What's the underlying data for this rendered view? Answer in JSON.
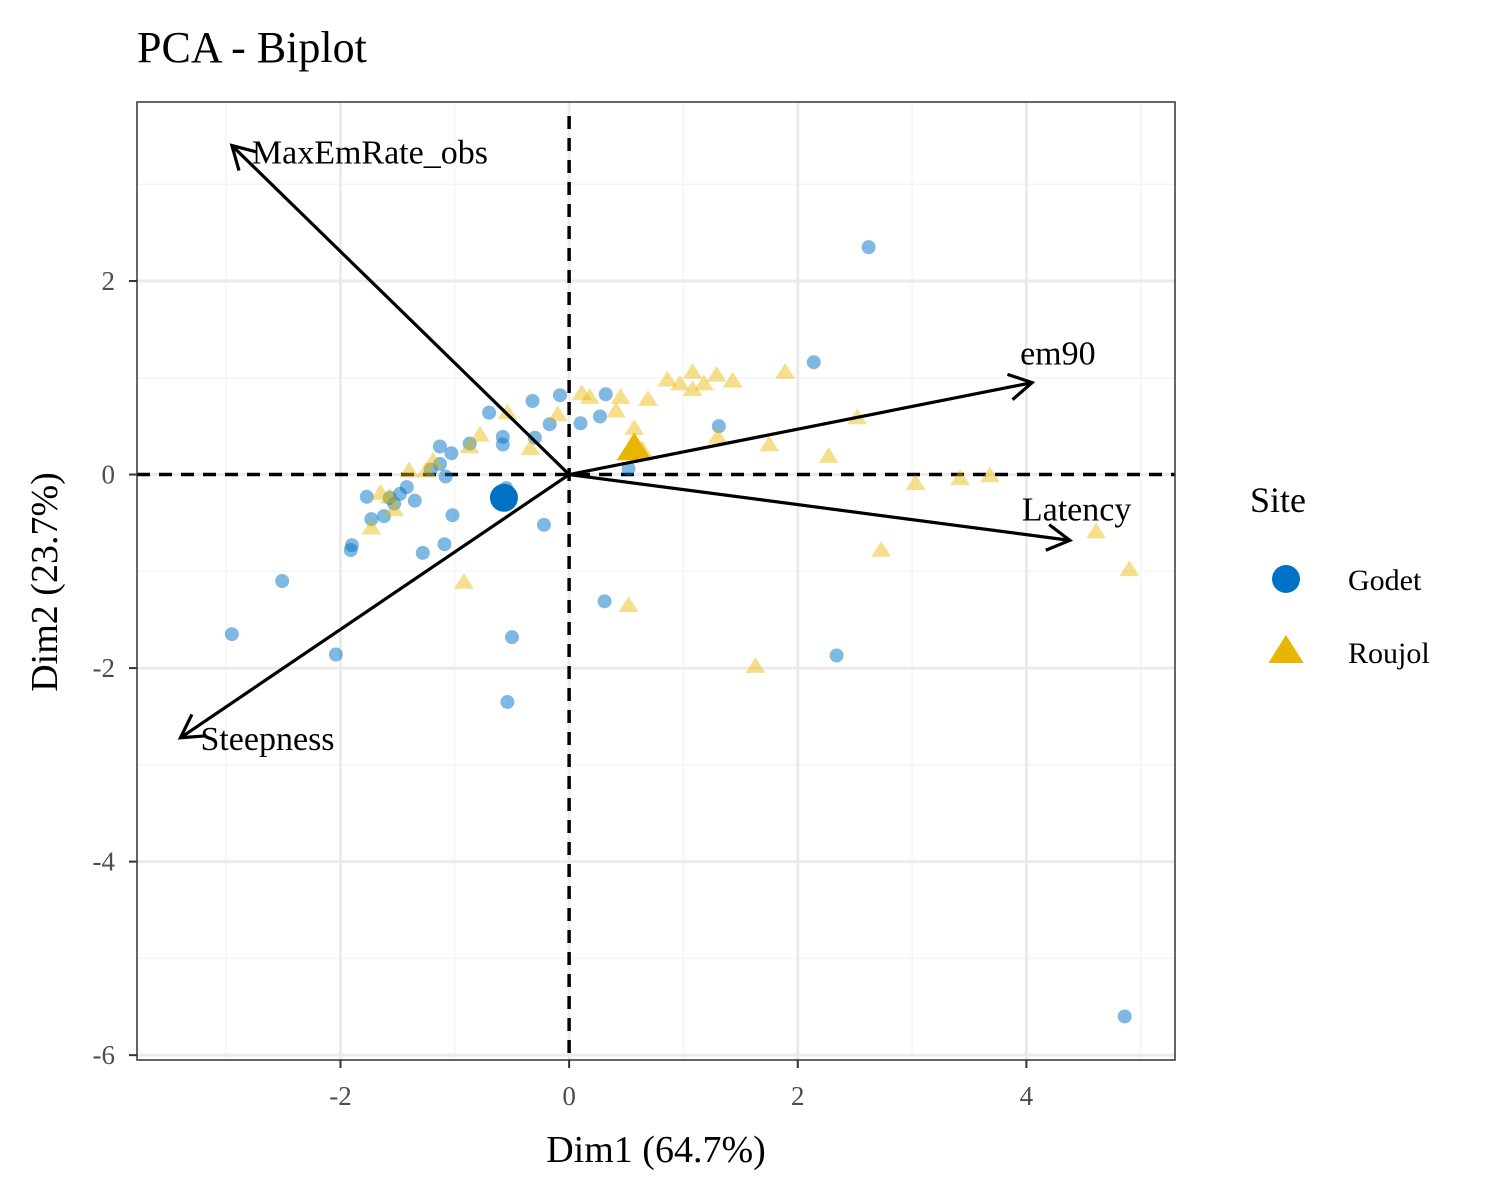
{
  "chart_data": {
    "type": "scatter",
    "title": "PCA - Biplot",
    "xlabel": "Dim1 (64.7%)",
    "ylabel": "Dim2 (23.7%)",
    "xlim": [
      -3.78,
      5.3
    ],
    "ylim": [
      -6.05,
      3.85
    ],
    "xticks": [
      -2,
      0,
      2,
      4
    ],
    "yticks": [
      -6,
      -4,
      -2,
      0,
      2
    ],
    "grid": true,
    "legend": {
      "title": "Site",
      "position": "right",
      "entries": [
        {
          "label": "Godet",
          "color": "#0072C6",
          "shape": "circle"
        },
        {
          "label": "Roujol",
          "color": "#E8B500",
          "shape": "triangle"
        }
      ]
    },
    "series": [
      {
        "name": "Godet",
        "color": "#0072C6",
        "shape": "circle",
        "centroid": [
          -0.57,
          -0.24
        ],
        "points": [
          [
            2.62,
            2.35
          ],
          [
            2.14,
            1.16
          ],
          [
            1.31,
            0.5
          ],
          [
            0.52,
            0.06
          ],
          [
            0.32,
            0.83
          ],
          [
            0.27,
            0.6
          ],
          [
            0.1,
            0.53
          ],
          [
            -0.08,
            0.82
          ],
          [
            -0.17,
            0.52
          ],
          [
            -0.32,
            0.76
          ],
          [
            -0.3,
            0.38
          ],
          [
            -0.58,
            0.39
          ],
          [
            -0.58,
            0.31
          ],
          [
            -0.7,
            0.64
          ],
          [
            -0.87,
            0.32
          ],
          [
            -1.03,
            0.22
          ],
          [
            -1.13,
            0.29
          ],
          [
            -1.13,
            0.11
          ],
          [
            -1.08,
            -0.02
          ],
          [
            -1.21,
            0.05
          ],
          [
            -1.35,
            -0.27
          ],
          [
            -1.42,
            -0.13
          ],
          [
            -1.48,
            -0.2
          ],
          [
            -1.53,
            -0.3
          ],
          [
            -1.57,
            -0.24
          ],
          [
            -1.62,
            -0.43
          ],
          [
            -1.73,
            -0.46
          ],
          [
            -1.77,
            -0.23
          ],
          [
            -1.9,
            -0.73
          ],
          [
            -1.91,
            -0.78
          ],
          [
            -1.02,
            -0.42
          ],
          [
            -1.09,
            -0.72
          ],
          [
            -1.28,
            -0.81
          ],
          [
            -0.22,
            -0.52
          ],
          [
            -0.55,
            -0.14
          ],
          [
            0.31,
            -1.31
          ],
          [
            -0.5,
            -1.68
          ],
          [
            -0.54,
            -2.35
          ],
          [
            -2.04,
            -1.86
          ],
          [
            -2.51,
            -1.1
          ],
          [
            -2.95,
            -1.65
          ],
          [
            2.34,
            -1.87
          ],
          [
            4.86,
            -5.6
          ]
        ]
      },
      {
        "name": "Roujol",
        "color": "#E8B500",
        "shape": "triangle",
        "centroid": [
          0.57,
          0.27
        ],
        "points": [
          [
            0.11,
            0.84
          ],
          [
            0.18,
            0.8
          ],
          [
            0.45,
            0.8
          ],
          [
            0.69,
            0.78
          ],
          [
            0.86,
            0.98
          ],
          [
            0.97,
            0.94
          ],
          [
            1.08,
            1.06
          ],
          [
            1.08,
            0.88
          ],
          [
            1.18,
            0.94
          ],
          [
            1.29,
            1.03
          ],
          [
            1.43,
            0.97
          ],
          [
            1.89,
            1.06
          ],
          [
            0.41,
            0.66
          ],
          [
            0.57,
            0.48
          ],
          [
            0.64,
            0.26
          ],
          [
            1.3,
            0.39
          ],
          [
            1.75,
            0.31
          ],
          [
            2.27,
            0.19
          ],
          [
            2.52,
            0.59
          ],
          [
            3.03,
            -0.09
          ],
          [
            3.42,
            -0.04
          ],
          [
            3.68,
            -0.01
          ],
          [
            4.61,
            -0.59
          ],
          [
            4.9,
            -0.98
          ],
          [
            2.73,
            -0.78
          ],
          [
            1.63,
            -1.98
          ],
          [
            0.52,
            -1.35
          ],
          [
            -0.92,
            -1.11
          ],
          [
            -0.54,
            0.64
          ],
          [
            -0.34,
            0.27
          ],
          [
            -0.87,
            0.29
          ],
          [
            -0.78,
            0.41
          ],
          [
            -1.19,
            0.14
          ],
          [
            -1.25,
            0.04
          ],
          [
            -1.4,
            0.04
          ],
          [
            -1.53,
            -0.36
          ],
          [
            -1.57,
            -0.23
          ],
          [
            -1.65,
            -0.19
          ],
          [
            -1.73,
            -0.55
          ],
          [
            -0.1,
            0.62
          ]
        ]
      }
    ],
    "variables": [
      {
        "name": "MaxEmRate_obs",
        "x": -2.95,
        "y": 3.4
      },
      {
        "name": "em90",
        "x": 4.05,
        "y": 0.95
      },
      {
        "name": "Latency",
        "x": 4.38,
        "y": -0.68
      },
      {
        "name": "Steepness",
        "x": -3.4,
        "y": -2.72
      }
    ],
    "colors": {
      "panel_border": "#333333",
      "grid_major": "#ebebeb",
      "grid_minor": "#f5f5f5",
      "arrows": "#000000"
    }
  }
}
